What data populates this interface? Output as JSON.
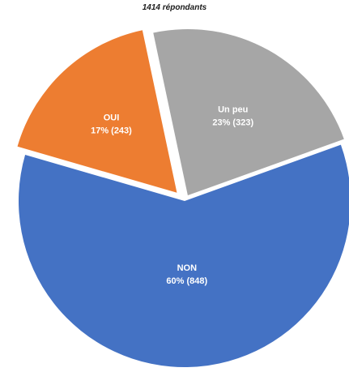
{
  "chart_data": {
    "type": "pie",
    "title": "1414 répondants",
    "slices": [
      {
        "name": "Un peu",
        "percent_label": "23% (323)",
        "value": 323,
        "percent": 23,
        "color": "#a6a6a6"
      },
      {
        "name": "NON",
        "percent_label": "60% (848)",
        "value": 848,
        "percent": 60,
        "color": "#4472c4"
      },
      {
        "name": "OUI",
        "percent_label": "17% (243)",
        "value": 243,
        "percent": 17,
        "color": "#ed7d31"
      }
    ],
    "exploded": true,
    "legend": "none"
  }
}
